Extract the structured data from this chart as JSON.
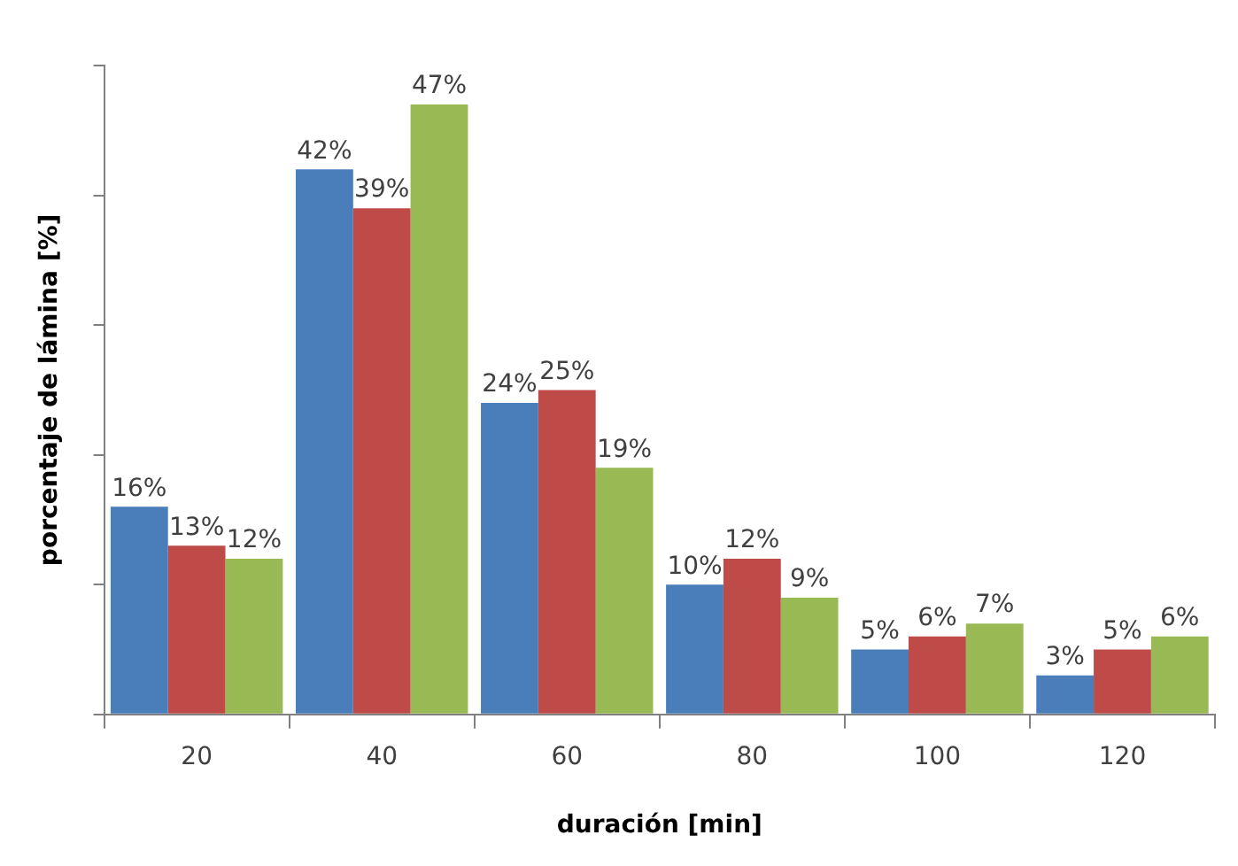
{
  "chart_data": {
    "type": "bar",
    "xlabel": "duración [min]",
    "ylabel": "porcentaje de lámina [%]",
    "categories": [
      "20",
      "40",
      "60",
      "80",
      "100",
      "120"
    ],
    "series": [
      {
        "color": "#4a7ebb",
        "values": [
          16,
          42,
          24,
          10,
          5,
          3
        ],
        "value_labels": [
          "16%",
          "42%",
          "24%",
          "10%",
          "5%",
          "3%"
        ]
      },
      {
        "color": "#be4b48",
        "values": [
          13,
          39,
          25,
          12,
          6,
          5
        ],
        "value_labels": [
          "13%",
          "39%",
          "25%",
          "12%",
          "6%",
          "5%"
        ]
      },
      {
        "color": "#98b954",
        "values": [
          12,
          47,
          19,
          9,
          7,
          6
        ],
        "value_labels": [
          "12%",
          "47%",
          "19%",
          "9%",
          "7%",
          "6%"
        ]
      }
    ],
    "ylim": [
      0,
      50
    ],
    "yticks": [
      {
        "value": 0,
        "label": null
      },
      {
        "value": 10,
        "label": null
      },
      {
        "value": 20,
        "label": null
      },
      {
        "value": 30,
        "label": null
      },
      {
        "value": 40,
        "label": null
      },
      {
        "value": 50,
        "label": null
      }
    ],
    "tick_labels": "x",
    "grid": false,
    "legend": false
  }
}
